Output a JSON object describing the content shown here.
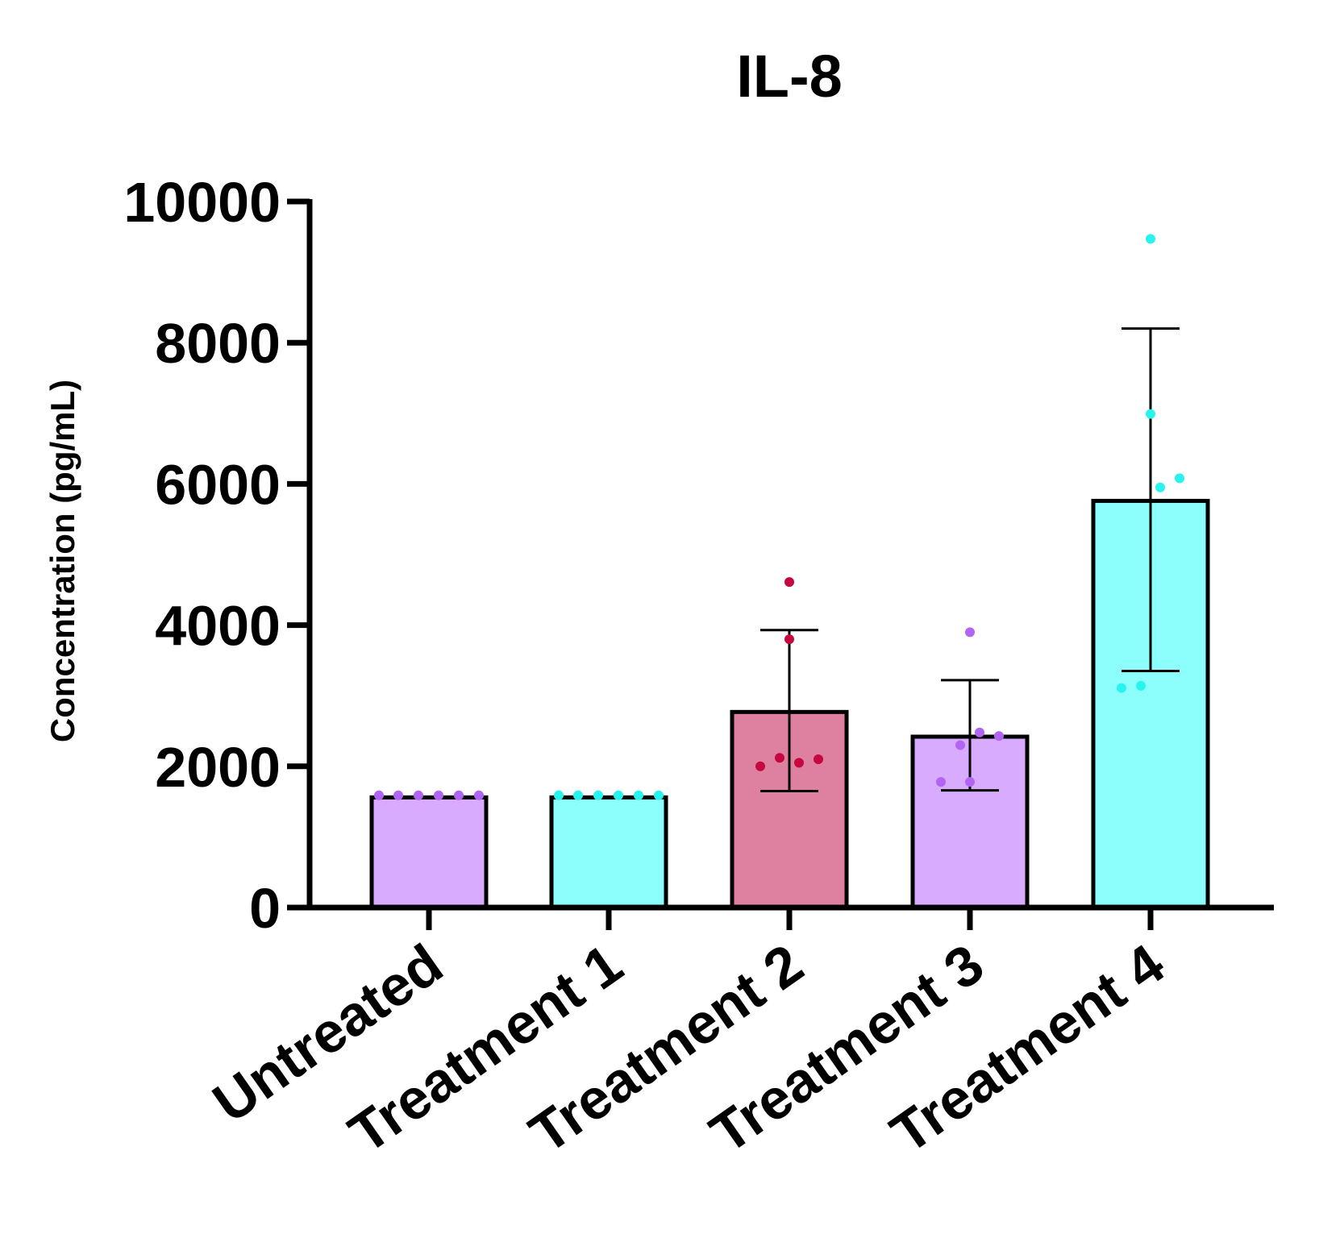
{
  "chart_data": {
    "type": "bar",
    "title": "IL-8",
    "xlabel": "",
    "ylabel": "Concentration (pg/mL)",
    "ylim": [
      0,
      10000
    ],
    "yticks": [
      0,
      2000,
      4000,
      6000,
      8000,
      10000
    ],
    "categories": [
      "Untreated",
      "Treatment 1",
      "Treatment 2",
      "Treatment 3",
      "Treatment 4"
    ],
    "values": [
      1560,
      1560,
      2770,
      2420,
      5760
    ],
    "error_upper": [
      1560,
      1560,
      3930,
      3220,
      8200
    ],
    "error_lower": [
      1560,
      1560,
      1650,
      1660,
      3350
    ],
    "bar_colors": [
      "#d8abff",
      "#8cfffd",
      "#de809f",
      "#d8abff",
      "#8cfffd"
    ],
    "point_colors": [
      "#b265f2",
      "#28f4ef",
      "#c5063f",
      "#b265f2",
      "#28f4ef"
    ],
    "points": [
      [
        1590,
        1590,
        1590,
        1590,
        1590,
        1590
      ],
      [
        1590,
        1590,
        1590,
        1590,
        1590,
        1590
      ],
      [
        2000,
        2120,
        2050,
        2100,
        3800,
        4610
      ],
      [
        1780,
        2300,
        2480,
        2430,
        1780,
        3900
      ],
      [
        3110,
        3140,
        5950,
        6080,
        6990,
        9470
      ]
    ],
    "grid": false,
    "legend": "none"
  }
}
